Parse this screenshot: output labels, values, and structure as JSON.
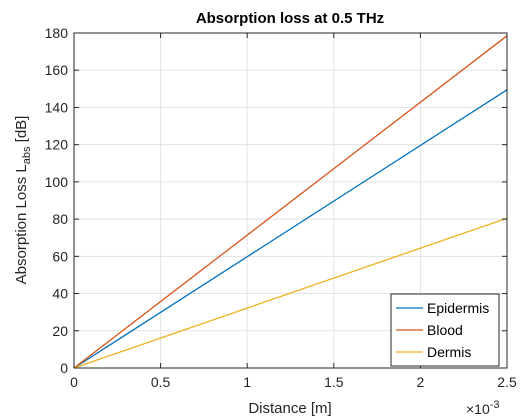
{
  "chart_data": {
    "type": "line",
    "title": "Absorption loss at 0.5 THz",
    "xlabel": "Distance [m]",
    "ylabel": {
      "main": "Absorption Loss L",
      "subscript": "abs",
      "unit": " [dB]"
    },
    "x_exponent": {
      "base": "×10",
      "power": "-3"
    },
    "x_tick_labels": [
      "0",
      "0.5",
      "1",
      "1.5",
      "2",
      "2.5"
    ],
    "y_tick_labels": [
      "0",
      "20",
      "40",
      "60",
      "80",
      "100",
      "120",
      "140",
      "160",
      "180"
    ],
    "xlim": [
      0,
      2.5
    ],
    "ylim": [
      0,
      180
    ],
    "x_ticks": [
      0,
      0.5,
      1,
      1.5,
      2,
      2.5
    ],
    "y_ticks": [
      0,
      20,
      40,
      60,
      80,
      100,
      120,
      140,
      160,
      180
    ],
    "grid": true,
    "legend_position": "bottom-right",
    "series": [
      {
        "name": "Epidermis",
        "color": "#0072BD",
        "x": [
          0,
          2.5
        ],
        "y": [
          0,
          149.5
        ]
      },
      {
        "name": "Blood",
        "color": "#D95319",
        "x": [
          0,
          2.5
        ],
        "y": [
          0,
          178.5
        ]
      },
      {
        "name": "Dermis",
        "color": "#EDB120",
        "x": [
          0,
          2.5
        ],
        "y": [
          0,
          80.5
        ]
      }
    ]
  }
}
